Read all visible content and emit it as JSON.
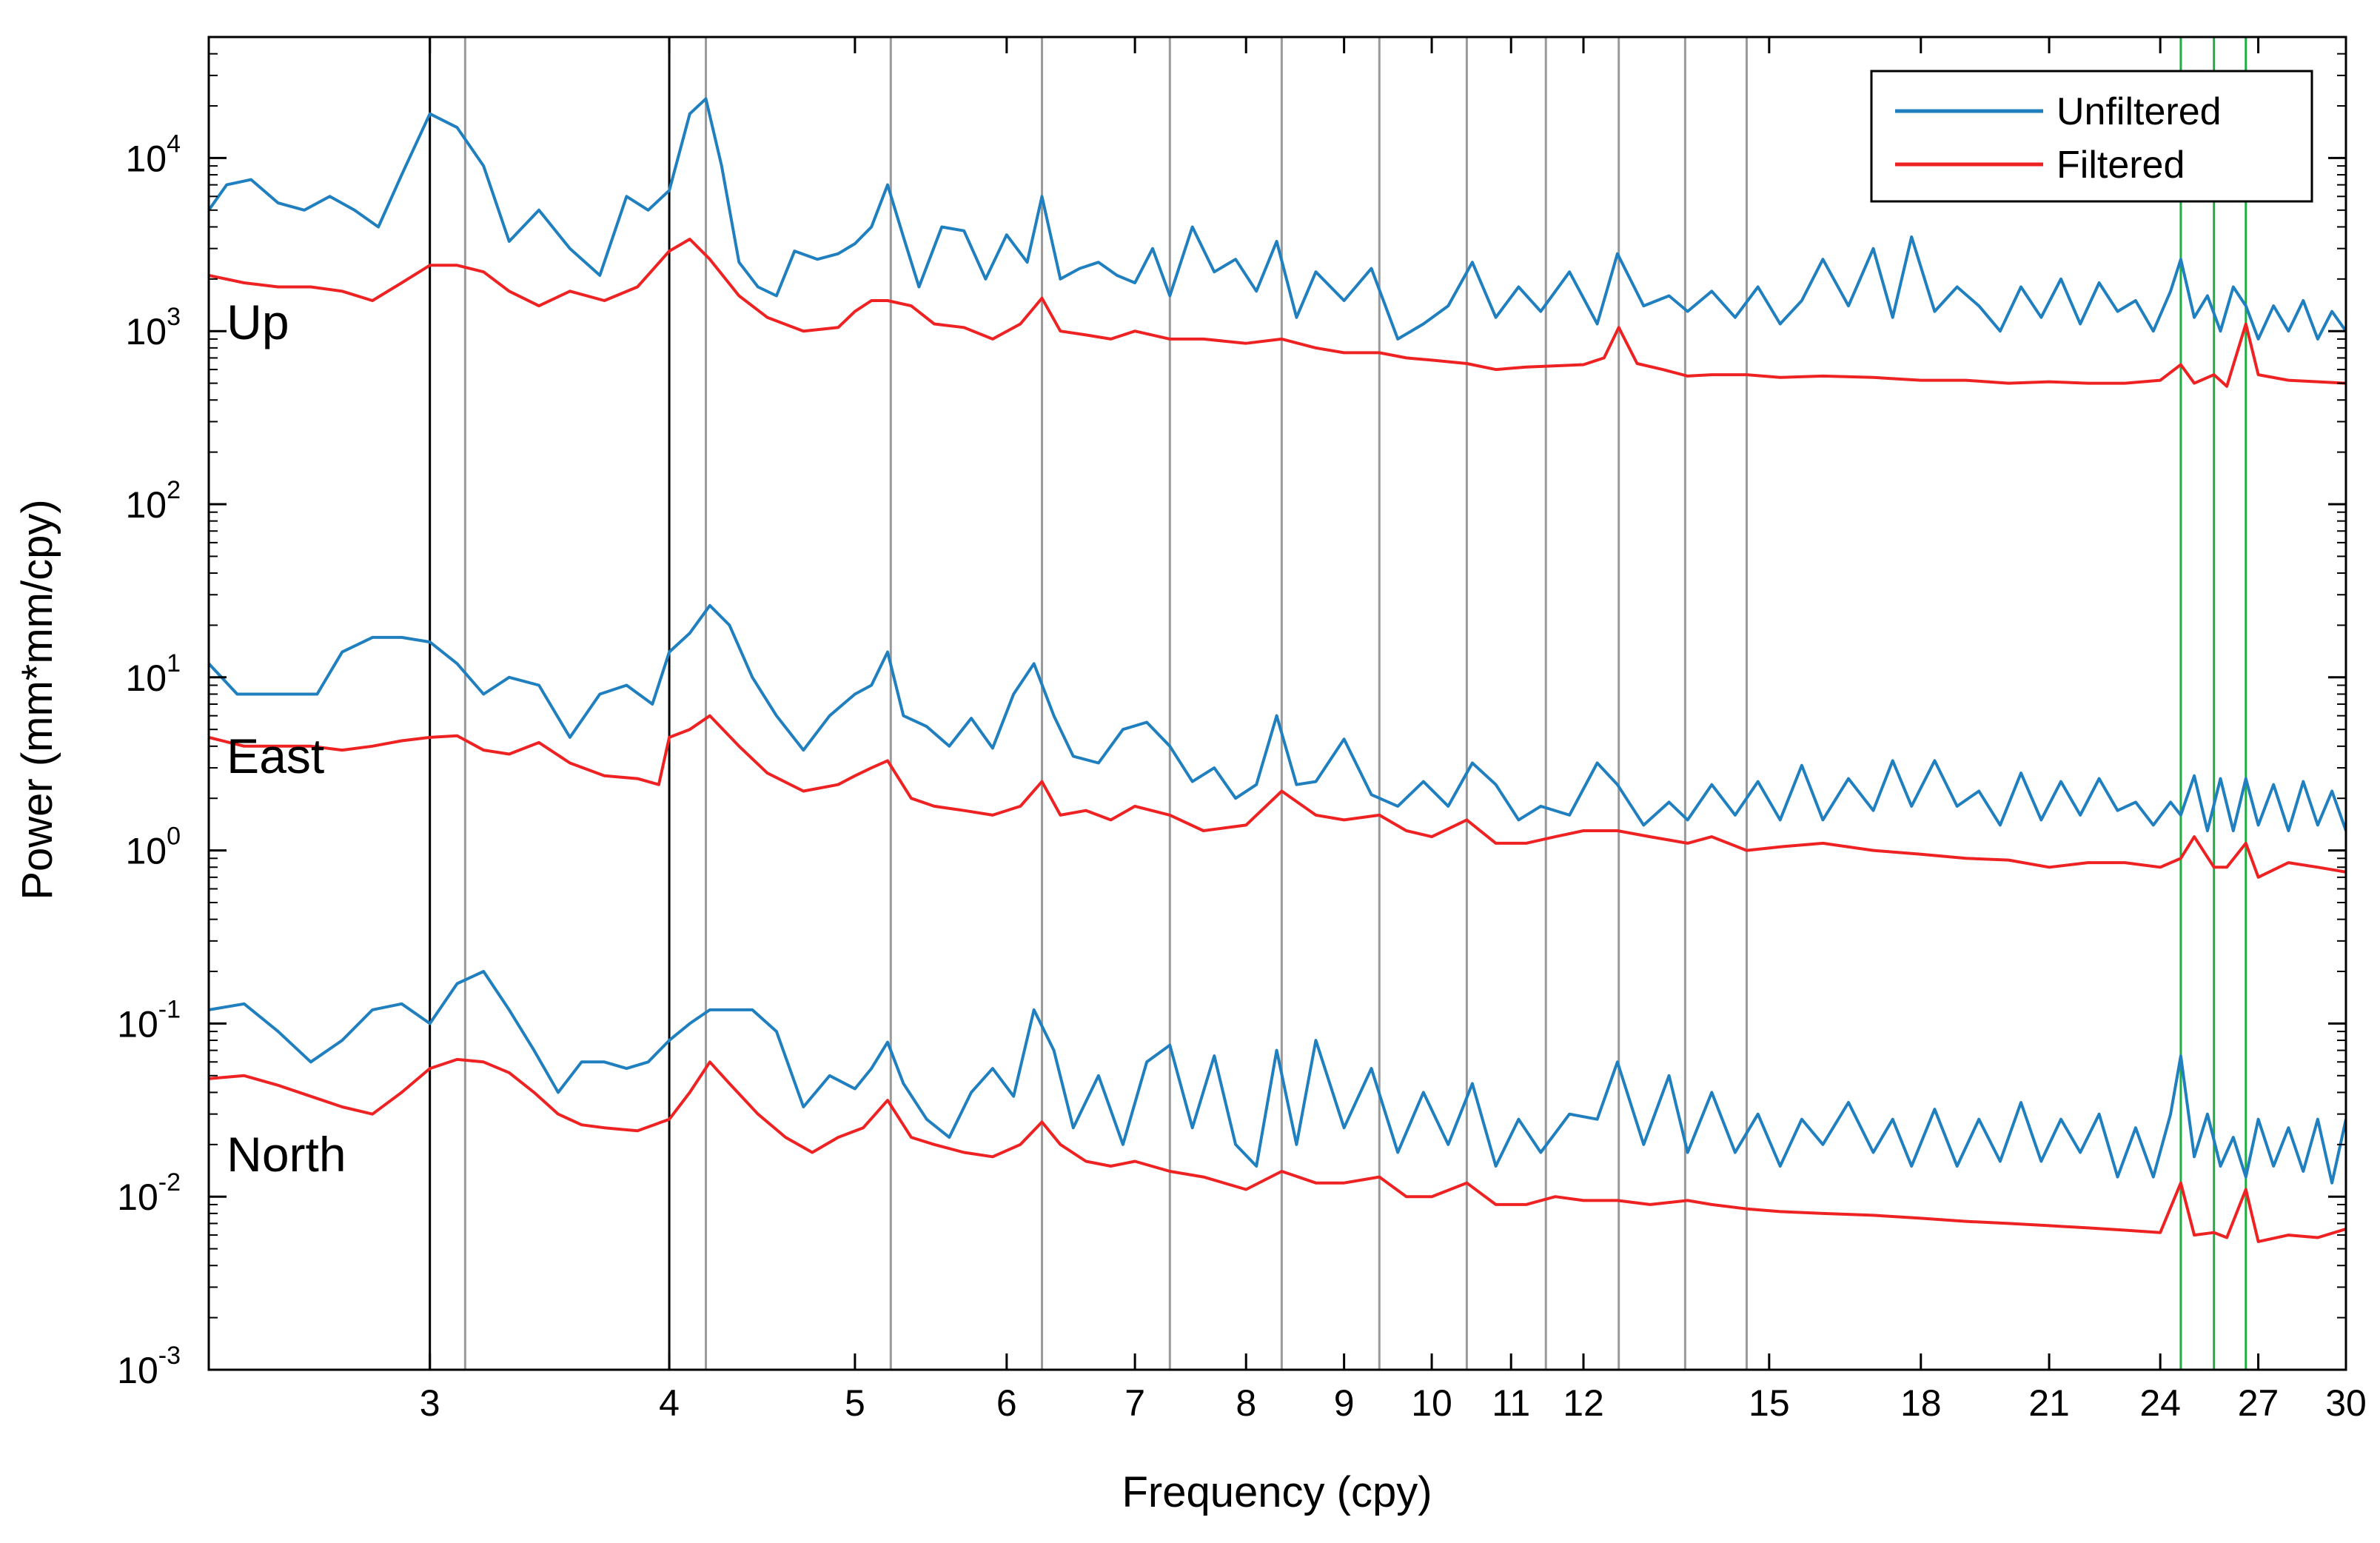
{
  "chart_data": {
    "type": "line",
    "title": "",
    "xlabel": "Frequency (cpy)",
    "ylabel": "Power (mm*mm/cpy)",
    "xscale": "log",
    "yscale": "log",
    "xlim": [
      2.3,
      30
    ],
    "ylim": [
      0.001,
      50000
    ],
    "xticks": [
      3,
      4,
      5,
      6,
      7,
      8,
      9,
      10,
      11,
      12,
      15,
      18,
      21,
      24,
      27,
      30
    ],
    "xtick_labels": [
      "3",
      "4",
      "5",
      "6",
      "7",
      "8",
      "9",
      "10",
      "11",
      "12",
      "15",
      "18",
      "21",
      "24",
      "27",
      "30"
    ],
    "yticks": [
      {
        "mantissa": "10",
        "exp": "-3",
        "value": 0.001
      },
      {
        "mantissa": "10",
        "exp": "-2",
        "value": 0.01
      },
      {
        "mantissa": "10",
        "exp": "-1",
        "value": 0.1
      },
      {
        "mantissa": "10",
        "exp": "0",
        "value": 1
      },
      {
        "mantissa": "10",
        "exp": "1",
        "value": 10
      },
      {
        "mantissa": "10",
        "exp": "2",
        "value": 100
      },
      {
        "mantissa": "10",
        "exp": "3",
        "value": 1000
      },
      {
        "mantissa": "10",
        "exp": "4",
        "value": 10000
      }
    ],
    "legend": {
      "position": "top-right",
      "entries": [
        {
          "name": "Unfiltered",
          "color": "#1f7fbf"
        },
        {
          "name": "Filtered",
          "color": "#ee2222"
        }
      ]
    },
    "annotations": [
      {
        "text": "Up",
        "x": 2.35,
        "y": 900
      },
      {
        "text": "East",
        "x": 2.35,
        "y": 2.8
      },
      {
        "text": "North",
        "x": 2.35,
        "y": 0.014
      }
    ],
    "vlines": {
      "black": [
        3.0,
        4.0
      ],
      "gray": [
        3.13,
        4.18,
        5.22,
        6.26,
        7.3,
        8.35,
        9.39,
        10.43,
        11.47,
        12.52,
        13.56,
        14.6
      ],
      "green": [
        24.6,
        25.6,
        26.6
      ]
    },
    "series": [
      {
        "group": "Up",
        "name": "Unfiltered",
        "color": "#1f7fbf",
        "x": [
          2.3,
          2.35,
          2.42,
          2.5,
          2.58,
          2.66,
          2.74,
          2.82,
          2.9,
          3.0,
          3.1,
          3.2,
          3.3,
          3.42,
          3.55,
          3.68,
          3.8,
          3.9,
          4.0,
          4.1,
          4.18,
          4.26,
          4.35,
          4.45,
          4.55,
          4.65,
          4.78,
          4.9,
          5.0,
          5.1,
          5.2,
          5.3,
          5.4,
          5.55,
          5.7,
          5.85,
          6.0,
          6.15,
          6.26,
          6.4,
          6.55,
          6.7,
          6.85,
          7.0,
          7.15,
          7.3,
          7.5,
          7.7,
          7.9,
          8.1,
          8.3,
          8.5,
          8.7,
          9.0,
          9.3,
          9.6,
          9.9,
          10.2,
          10.5,
          10.8,
          11.1,
          11.4,
          11.8,
          12.2,
          12.5,
          12.9,
          13.3,
          13.6,
          14.0,
          14.4,
          14.8,
          15.2,
          15.6,
          16.0,
          16.5,
          17.0,
          17.4,
          17.8,
          18.3,
          18.8,
          19.3,
          19.8,
          20.3,
          20.8,
          21.3,
          21.8,
          22.3,
          22.8,
          23.3,
          23.8,
          24.3,
          24.6,
          25.0,
          25.4,
          25.8,
          26.2,
          26.6,
          27.0,
          27.5,
          28.0,
          28.5,
          29.0,
          29.5,
          30.0
        ],
        "values": [
          5000,
          7000,
          7500,
          5500,
          5000,
          6000,
          5000,
          4000,
          8000,
          18000,
          15000,
          9000,
          3300,
          5000,
          3000,
          2100,
          6000,
          5000,
          6500,
          18000,
          22000,
          9000,
          2500,
          1800,
          1600,
          2900,
          2600,
          2800,
          3200,
          4000,
          7000,
          3500,
          1800,
          4000,
          3800,
          2000,
          3600,
          2500,
          6000,
          2000,
          2300,
          2500,
          2100,
          1900,
          3000,
          1600,
          4000,
          2200,
          2600,
          1700,
          3300,
          1200,
          2200,
          1500,
          2300,
          900,
          1100,
          1400,
          2500,
          1200,
          1800,
          1300,
          2200,
          1100,
          2800,
          1400,
          1600,
          1300,
          1700,
          1200,
          1800,
          1100,
          1500,
          2600,
          1400,
          3000,
          1200,
          3500,
          1300,
          1800,
          1400,
          1000,
          1800,
          1200,
          2000,
          1100,
          1900,
          1300,
          1500,
          1000,
          1700,
          2600,
          1200,
          1600,
          1000,
          1800,
          1400,
          900,
          1400,
          1000,
          1500,
          900,
          1300,
          1000
        ]
      },
      {
        "group": "Up",
        "name": "Filtered",
        "color": "#ee2222",
        "x": [
          2.3,
          2.4,
          2.5,
          2.6,
          2.7,
          2.8,
          2.9,
          3.0,
          3.1,
          3.2,
          3.3,
          3.42,
          3.55,
          3.7,
          3.85,
          4.0,
          4.1,
          4.2,
          4.35,
          4.5,
          4.7,
          4.9,
          5.0,
          5.1,
          5.2,
          5.35,
          5.5,
          5.7,
          5.9,
          6.1,
          6.26,
          6.4,
          6.6,
          6.8,
          7.0,
          7.3,
          7.6,
          8.0,
          8.35,
          8.7,
          9.0,
          9.39,
          9.7,
          10.0,
          10.43,
          10.8,
          11.2,
          11.6,
          12.0,
          12.3,
          12.52,
          12.8,
          13.2,
          13.6,
          14.0,
          14.6,
          15.2,
          16.0,
          17.0,
          18.0,
          19.0,
          20.0,
          21.0,
          22.0,
          23.0,
          24.0,
          24.6,
          25.0,
          25.6,
          26.0,
          26.6,
          27.0,
          28.0,
          29.0,
          30.0
        ],
        "values": [
          2100,
          1900,
          1800,
          1800,
          1700,
          1500,
          1900,
          2400,
          2400,
          2200,
          1700,
          1400,
          1700,
          1500,
          1800,
          2900,
          3400,
          2600,
          1600,
          1200,
          1000,
          1050,
          1300,
          1500,
          1500,
          1400,
          1100,
          1050,
          900,
          1100,
          1550,
          1000,
          950,
          900,
          1000,
          900,
          900,
          850,
          900,
          800,
          750,
          750,
          700,
          680,
          650,
          600,
          620,
          630,
          640,
          700,
          1050,
          650,
          600,
          550,
          560,
          560,
          540,
          550,
          540,
          520,
          520,
          500,
          510,
          500,
          500,
          520,
          640,
          500,
          560,
          480,
          1100,
          560,
          520,
          510,
          500
        ]
      },
      {
        "group": "East",
        "name": "Unfiltered",
        "color": "#1f7fbf",
        "x": [
          2.3,
          2.38,
          2.46,
          2.54,
          2.62,
          2.7,
          2.8,
          2.9,
          3.0,
          3.1,
          3.2,
          3.3,
          3.42,
          3.55,
          3.68,
          3.8,
          3.92,
          4.0,
          4.1,
          4.2,
          4.3,
          4.42,
          4.55,
          4.7,
          4.85,
          5.0,
          5.1,
          5.2,
          5.3,
          5.45,
          5.6,
          5.75,
          5.9,
          6.05,
          6.2,
          6.35,
          6.5,
          6.7,
          6.9,
          7.1,
          7.3,
          7.5,
          7.7,
          7.9,
          8.1,
          8.3,
          8.5,
          8.7,
          9.0,
          9.3,
          9.6,
          9.9,
          10.2,
          10.5,
          10.8,
          11.1,
          11.4,
          11.8,
          12.2,
          12.5,
          12.9,
          13.3,
          13.6,
          14.0,
          14.4,
          14.8,
          15.2,
          15.6,
          16.0,
          16.5,
          17.0,
          17.4,
          17.8,
          18.3,
          18.8,
          19.3,
          19.8,
          20.3,
          20.8,
          21.3,
          21.8,
          22.3,
          22.8,
          23.3,
          23.8,
          24.3,
          24.6,
          25.0,
          25.4,
          25.8,
          26.2,
          26.6,
          27.0,
          27.5,
          28.0,
          28.5,
          29.0,
          29.5,
          30.0
        ],
        "values": [
          12,
          8,
          8,
          8,
          8,
          14,
          17,
          17,
          16,
          12,
          8,
          10,
          9,
          4.5,
          8,
          9,
          7,
          14,
          18,
          26,
          20,
          10,
          6,
          3.8,
          6,
          8,
          9,
          14,
          6,
          5.2,
          4,
          5.8,
          3.9,
          8,
          12,
          6,
          3.5,
          3.2,
          5,
          5.5,
          4,
          2.5,
          3,
          2,
          2.4,
          6,
          2.4,
          2.5,
          4.4,
          2.1,
          1.8,
          2.5,
          1.8,
          3.2,
          2.4,
          1.5,
          1.8,
          1.6,
          3.2,
          2.4,
          1.4,
          1.9,
          1.5,
          2.4,
          1.6,
          2.5,
          1.5,
          3.1,
          1.5,
          2.6,
          1.7,
          3.3,
          1.8,
          3.3,
          1.8,
          2.2,
          1.4,
          2.8,
          1.5,
          2.5,
          1.6,
          2.6,
          1.7,
          1.9,
          1.4,
          1.9,
          1.6,
          2.7,
          1.3,
          2.6,
          1.3,
          2.6,
          1.4,
          2.4,
          1.3,
          2.5,
          1.4,
          2.2,
          1.3
        ]
      },
      {
        "group": "East",
        "name": "Filtered",
        "color": "#ee2222",
        "x": [
          2.3,
          2.4,
          2.5,
          2.6,
          2.7,
          2.8,
          2.9,
          3.0,
          3.1,
          3.2,
          3.3,
          3.42,
          3.55,
          3.7,
          3.85,
          3.95,
          4.0,
          4.1,
          4.2,
          4.35,
          4.5,
          4.7,
          4.9,
          5.0,
          5.1,
          5.2,
          5.35,
          5.5,
          5.7,
          5.9,
          6.1,
          6.26,
          6.4,
          6.6,
          6.8,
          7.0,
          7.3,
          7.6,
          8.0,
          8.35,
          8.7,
          9.0,
          9.39,
          9.7,
          10.0,
          10.43,
          10.8,
          11.2,
          11.6,
          12.0,
          12.5,
          13.0,
          13.6,
          14.0,
          14.6,
          15.2,
          16.0,
          17.0,
          18.0,
          19.0,
          20.0,
          21.0,
          22.0,
          23.0,
          24.0,
          24.6,
          25.0,
          25.6,
          26.0,
          26.6,
          27.0,
          28.0,
          29.0,
          30.0
        ],
        "values": [
          4.5,
          4.0,
          4.0,
          4.0,
          3.8,
          4.0,
          4.3,
          4.5,
          4.6,
          3.8,
          3.6,
          4.2,
          3.2,
          2.7,
          2.6,
          2.4,
          4.5,
          5.0,
          6.0,
          4.0,
          2.8,
          2.2,
          2.4,
          2.7,
          3.0,
          3.3,
          2.0,
          1.8,
          1.7,
          1.6,
          1.8,
          2.5,
          1.6,
          1.7,
          1.5,
          1.8,
          1.6,
          1.3,
          1.4,
          2.2,
          1.6,
          1.5,
          1.6,
          1.3,
          1.2,
          1.5,
          1.1,
          1.1,
          1.2,
          1.3,
          1.3,
          1.2,
          1.1,
          1.2,
          1.0,
          1.05,
          1.1,
          1.0,
          0.95,
          0.9,
          0.88,
          0.8,
          0.85,
          0.85,
          0.8,
          0.9,
          1.2,
          0.8,
          0.8,
          1.1,
          0.7,
          0.85,
          0.8,
          0.75
        ]
      },
      {
        "group": "North",
        "name": "Unfiltered",
        "color": "#1f7fbf",
        "x": [
          2.3,
          2.4,
          2.5,
          2.6,
          2.7,
          2.8,
          2.9,
          3.0,
          3.1,
          3.2,
          3.3,
          3.4,
          3.5,
          3.6,
          3.7,
          3.8,
          3.9,
          4.0,
          4.1,
          4.2,
          4.3,
          4.42,
          4.55,
          4.7,
          4.85,
          5.0,
          5.1,
          5.2,
          5.3,
          5.45,
          5.6,
          5.75,
          5.9,
          6.05,
          6.2,
          6.35,
          6.5,
          6.7,
          6.9,
          7.1,
          7.3,
          7.5,
          7.7,
          7.9,
          8.1,
          8.3,
          8.5,
          8.7,
          9.0,
          9.3,
          9.6,
          9.9,
          10.2,
          10.5,
          10.8,
          11.1,
          11.4,
          11.8,
          12.2,
          12.5,
          12.9,
          13.3,
          13.6,
          14.0,
          14.4,
          14.8,
          15.2,
          15.6,
          16.0,
          16.5,
          17.0,
          17.4,
          17.8,
          18.3,
          18.8,
          19.3,
          19.8,
          20.3,
          20.8,
          21.3,
          21.8,
          22.3,
          22.8,
          23.3,
          23.8,
          24.3,
          24.6,
          25.0,
          25.4,
          25.8,
          26.2,
          26.6,
          27.0,
          27.5,
          28.0,
          28.5,
          29.0,
          29.5,
          30.0
        ],
        "values": [
          0.12,
          0.13,
          0.09,
          0.06,
          0.08,
          0.12,
          0.13,
          0.1,
          0.17,
          0.2,
          0.12,
          0.07,
          0.04,
          0.06,
          0.06,
          0.055,
          0.06,
          0.08,
          0.1,
          0.12,
          0.12,
          0.12,
          0.09,
          0.033,
          0.05,
          0.042,
          0.055,
          0.078,
          0.045,
          0.028,
          0.022,
          0.04,
          0.055,
          0.038,
          0.12,
          0.07,
          0.025,
          0.05,
          0.02,
          0.06,
          0.075,
          0.025,
          0.065,
          0.02,
          0.015,
          0.07,
          0.02,
          0.08,
          0.025,
          0.055,
          0.018,
          0.04,
          0.02,
          0.045,
          0.015,
          0.028,
          0.018,
          0.03,
          0.028,
          0.06,
          0.02,
          0.05,
          0.018,
          0.04,
          0.018,
          0.03,
          0.015,
          0.028,
          0.02,
          0.035,
          0.018,
          0.028,
          0.015,
          0.032,
          0.015,
          0.028,
          0.016,
          0.035,
          0.016,
          0.028,
          0.018,
          0.03,
          0.013,
          0.025,
          0.013,
          0.03,
          0.065,
          0.017,
          0.03,
          0.015,
          0.022,
          0.013,
          0.028,
          0.015,
          0.025,
          0.014,
          0.028,
          0.012,
          0.028
        ]
      },
      {
        "group": "North",
        "name": "Filtered",
        "color": "#ee2222",
        "x": [
          2.3,
          2.4,
          2.5,
          2.6,
          2.7,
          2.8,
          2.9,
          3.0,
          3.1,
          3.2,
          3.3,
          3.4,
          3.5,
          3.6,
          3.7,
          3.85,
          4.0,
          4.1,
          4.2,
          4.3,
          4.45,
          4.6,
          4.75,
          4.9,
          5.05,
          5.2,
          5.35,
          5.5,
          5.7,
          5.9,
          6.1,
          6.26,
          6.4,
          6.6,
          6.8,
          7.0,
          7.3,
          7.6,
          8.0,
          8.35,
          8.7,
          9.0,
          9.39,
          9.7,
          10.0,
          10.43,
          10.8,
          11.2,
          11.6,
          12.0,
          12.5,
          13.0,
          13.6,
          14.0,
          14.6,
          15.2,
          16.0,
          17.0,
          18.0,
          19.0,
          20.0,
          21.0,
          22.0,
          23.0,
          24.0,
          24.6,
          25.0,
          25.6,
          26.0,
          26.6,
          27.0,
          28.0,
          29.0,
          30.0
        ],
        "values": [
          0.048,
          0.05,
          0.044,
          0.038,
          0.033,
          0.03,
          0.04,
          0.055,
          0.062,
          0.06,
          0.052,
          0.04,
          0.03,
          0.026,
          0.025,
          0.024,
          0.028,
          0.04,
          0.06,
          0.045,
          0.03,
          0.022,
          0.018,
          0.022,
          0.025,
          0.036,
          0.022,
          0.02,
          0.018,
          0.017,
          0.02,
          0.027,
          0.02,
          0.016,
          0.015,
          0.016,
          0.014,
          0.013,
          0.011,
          0.014,
          0.012,
          0.012,
          0.013,
          0.01,
          0.01,
          0.012,
          0.009,
          0.009,
          0.01,
          0.0095,
          0.0095,
          0.009,
          0.0095,
          0.009,
          0.0085,
          0.0082,
          0.008,
          0.0078,
          0.0075,
          0.0072,
          0.007,
          0.0068,
          0.0066,
          0.0064,
          0.0062,
          0.012,
          0.006,
          0.0062,
          0.0058,
          0.011,
          0.0055,
          0.006,
          0.0058,
          0.0065
        ]
      }
    ]
  }
}
